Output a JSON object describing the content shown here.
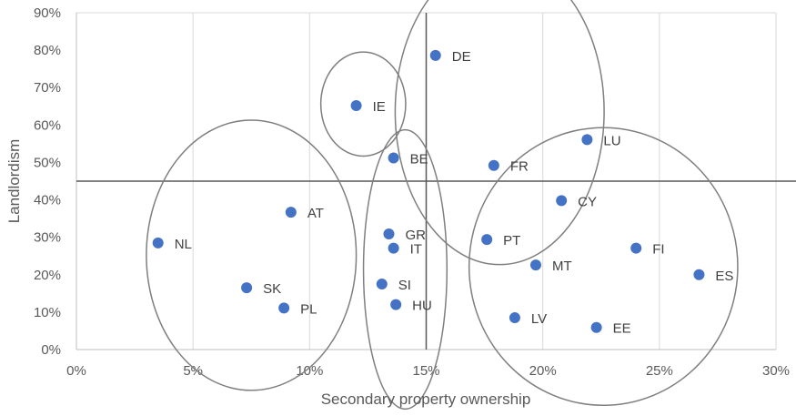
{
  "chart_data": {
    "type": "scatter",
    "title": "",
    "xlabel": "Secondary property ownership",
    "ylabel": "Landlordism",
    "xlim": [
      0,
      0.3
    ],
    "ylim": [
      0,
      0.9
    ],
    "x_ticks": [
      0,
      0.05,
      0.1,
      0.15,
      0.2,
      0.25,
      0.3
    ],
    "x_tick_labels": [
      "0%",
      "5%",
      "10%",
      "15%",
      "20%",
      "25%",
      "30%"
    ],
    "y_ticks": [
      0,
      0.1,
      0.2,
      0.3,
      0.4,
      0.5,
      0.6,
      0.7,
      0.8,
      0.9
    ],
    "y_tick_labels": [
      "0%",
      "10%",
      "20%",
      "30%",
      "40%",
      "50%",
      "60%",
      "70%",
      "80%",
      "90%"
    ],
    "grid": "vertical",
    "legend": "none",
    "marker_color": "#4472c4",
    "reference_lines": {
      "x": 0.15,
      "y": 0.45
    },
    "points": [
      {
        "label": "DE",
        "x": 0.154,
        "y": 0.786
      },
      {
        "label": "IE",
        "x": 0.12,
        "y": 0.652
      },
      {
        "label": "LU",
        "x": 0.219,
        "y": 0.561
      },
      {
        "label": "BE",
        "x": 0.136,
        "y": 0.512
      },
      {
        "label": "FR",
        "x": 0.179,
        "y": 0.492
      },
      {
        "label": "CY",
        "x": 0.208,
        "y": 0.398
      },
      {
        "label": "AT",
        "x": 0.092,
        "y": 0.367
      },
      {
        "label": "GR",
        "x": 0.134,
        "y": 0.309
      },
      {
        "label": "PT",
        "x": 0.176,
        "y": 0.294
      },
      {
        "label": "NL",
        "x": 0.035,
        "y": 0.285
      },
      {
        "label": "IT",
        "x": 0.136,
        "y": 0.271
      },
      {
        "label": "FI",
        "x": 0.24,
        "y": 0.271
      },
      {
        "label": "MT",
        "x": 0.197,
        "y": 0.226
      },
      {
        "label": "ES",
        "x": 0.267,
        "y": 0.2
      },
      {
        "label": "SI",
        "x": 0.131,
        "y": 0.175
      },
      {
        "label": "SK",
        "x": 0.073,
        "y": 0.165
      },
      {
        "label": "HU",
        "x": 0.137,
        "y": 0.12
      },
      {
        "label": "PL",
        "x": 0.089,
        "y": 0.111
      },
      {
        "label": "LV",
        "x": 0.188,
        "y": 0.085
      },
      {
        "label": "EE",
        "x": 0.223,
        "y": 0.059
      }
    ],
    "cluster_outlines": [
      {
        "cx": 0.123,
        "cy": 0.656,
        "rx": 0.0182,
        "ry": 0.139
      },
      {
        "cx": 0.1815,
        "cy": 0.636,
        "rx": 0.0448,
        "ry": 0.409
      },
      {
        "cx": 0.075,
        "cy": 0.252,
        "rx": 0.045,
        "ry": 0.361
      },
      {
        "cx": 0.141,
        "cy": 0.214,
        "rx": 0.0179,
        "ry": 0.373
      },
      {
        "cx": 0.226,
        "cy": 0.222,
        "rx": 0.0576,
        "ry": 0.371
      }
    ]
  }
}
